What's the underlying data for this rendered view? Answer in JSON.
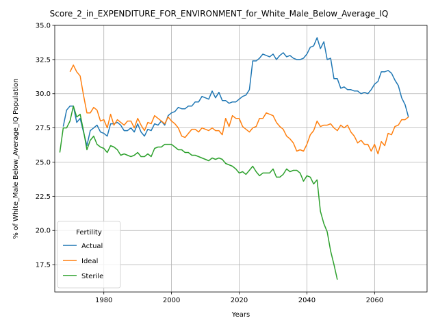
{
  "chart_data": {
    "type": "line",
    "title": "Score_2_in_EXPENDITURE_FOR_ENVIRONMENT_for_White_Male_Below_Average_IQ",
    "xlabel": "Years",
    "ylabel": "% of White_Male Below_Average_IQ Population",
    "xlim": [
      1965.5,
      2075.5
    ],
    "ylim": [
      15.5,
      35.0
    ],
    "xticks": [
      1980,
      2000,
      2020,
      2040,
      2060
    ],
    "xtick_labels": [
      "1980",
      "2000",
      "2020",
      "2040",
      "2060"
    ],
    "yticks": [
      17.5,
      20.0,
      22.5,
      25.0,
      27.5,
      30.0,
      32.5,
      35.0
    ],
    "ytick_labels": [
      "17.5",
      "20.0",
      "22.5",
      "25.0",
      "27.5",
      "30.0",
      "32.5",
      "35.0"
    ],
    "grid": true,
    "legend": {
      "title": "Fertility",
      "placement": "lower-left"
    },
    "series": [
      {
        "name": "Actual",
        "color": "#1f77b4",
        "x": [
          1968,
          1969,
          1970,
          1971,
          1972,
          1973,
          1974,
          1975,
          1976,
          1977,
          1978,
          1979,
          1980,
          1981,
          1982,
          1983,
          1984,
          1985,
          1986,
          1987,
          1988,
          1989,
          1990,
          1991,
          1992,
          1993,
          1994,
          1995,
          1996,
          1997,
          1998,
          1999,
          2000,
          2001,
          2002,
          2003,
          2004,
          2005,
          2006,
          2007,
          2008,
          2009,
          2010,
          2011,
          2012,
          2013,
          2014,
          2015,
          2016,
          2017,
          2018,
          2019,
          2020,
          2021,
          2022,
          2023,
          2024,
          2025,
          2026,
          2027,
          2028,
          2029,
          2030,
          2031,
          2032,
          2033,
          2034,
          2035,
          2036,
          2037,
          2038,
          2039,
          2040,
          2041,
          2042,
          2043,
          2044,
          2045,
          2046,
          2047,
          2048,
          2049,
          2050,
          2051,
          2052,
          2053,
          2054,
          2055,
          2056,
          2057,
          2058,
          2059,
          2060,
          2061,
          2062,
          2063,
          2064,
          2065,
          2066,
          2067,
          2068,
          2069,
          2070
        ],
        "y": [
          27.6,
          28.8,
          29.1,
          29.1,
          27.9,
          28.2,
          27.2,
          26.2,
          27.3,
          27.5,
          27.7,
          27.2,
          27.1,
          26.9,
          27.8,
          27.8,
          27.9,
          27.7,
          27.3,
          27.3,
          27.5,
          27.2,
          27.8,
          27.2,
          26.9,
          27.4,
          27.3,
          27.8,
          27.7,
          28.0,
          27.7,
          28.4,
          28.6,
          28.7,
          29.0,
          28.9,
          28.9,
          29.1,
          29.1,
          29.4,
          29.4,
          29.8,
          29.7,
          29.6,
          30.2,
          29.7,
          30.1,
          29.5,
          29.5,
          29.3,
          29.4,
          29.4,
          29.6,
          29.8,
          29.9,
          30.3,
          32.4,
          32.4,
          32.6,
          32.9,
          32.8,
          32.7,
          32.9,
          32.5,
          32.8,
          33.0,
          32.7,
          32.8,
          32.6,
          32.5,
          32.5,
          32.6,
          32.9,
          33.4,
          33.5,
          34.1,
          33.3,
          33.8,
          32.5,
          32.6,
          31.1,
          31.1,
          30.4,
          30.5,
          30.3,
          30.3,
          30.2,
          30.2,
          30.0,
          30.1,
          30.0,
          30.3,
          30.7,
          30.9,
          31.6,
          31.6,
          31.7,
          31.5,
          31.0,
          30.6,
          29.7,
          29.2,
          28.3
        ]
      },
      {
        "name": "Ideal",
        "color": "#ff7f0e",
        "x": [
          1970,
          1971,
          1972,
          1973,
          1974,
          1975,
          1976,
          1977,
          1978,
          1979,
          1980,
          1981,
          1982,
          1983,
          1984,
          1985,
          1986,
          1987,
          1988,
          1989,
          1990,
          1991,
          1992,
          1993,
          1994,
          1995,
          1996,
          1997,
          1998,
          1999,
          2000,
          2001,
          2002,
          2003,
          2004,
          2005,
          2006,
          2007,
          2008,
          2009,
          2010,
          2011,
          2012,
          2013,
          2014,
          2015,
          2016,
          2017,
          2018,
          2019,
          2020,
          2021,
          2022,
          2023,
          2024,
          2025,
          2026,
          2027,
          2028,
          2029,
          2030,
          2031,
          2032,
          2033,
          2034,
          2035,
          2036,
          2037,
          2038,
          2039,
          2040,
          2041,
          2042,
          2043,
          2044,
          2045,
          2046,
          2047,
          2048,
          2049,
          2050,
          2051,
          2052,
          2053,
          2054,
          2055,
          2056,
          2057,
          2058,
          2059,
          2060,
          2061,
          2062,
          2063,
          2064,
          2065,
          2066,
          2067,
          2068,
          2069,
          2070
        ],
        "y": [
          31.6,
          32.1,
          31.6,
          31.3,
          29.9,
          28.6,
          28.6,
          29.0,
          28.8,
          28.0,
          28.1,
          27.5,
          28.5,
          27.7,
          28.1,
          27.9,
          27.7,
          28.0,
          28.0,
          27.5,
          28.2,
          27.7,
          27.3,
          27.9,
          27.8,
          28.4,
          28.2,
          28.0,
          27.8,
          28.3,
          28.0,
          27.8,
          27.5,
          26.9,
          26.8,
          27.1,
          27.4,
          27.4,
          27.2,
          27.5,
          27.4,
          27.3,
          27.5,
          27.3,
          27.3,
          27.0,
          28.2,
          27.6,
          28.4,
          28.2,
          28.2,
          27.6,
          27.4,
          27.2,
          27.5,
          27.6,
          28.2,
          28.2,
          28.6,
          28.5,
          28.4,
          27.9,
          27.6,
          27.4,
          26.9,
          26.7,
          26.4,
          25.8,
          25.9,
          25.8,
          26.3,
          27.0,
          27.3,
          28.0,
          27.6,
          27.7,
          27.7,
          27.8,
          27.5,
          27.3,
          27.7,
          27.5,
          27.7,
          27.2,
          26.9,
          26.4,
          26.6,
          26.3,
          26.3,
          25.8,
          26.3,
          25.6,
          26.5,
          26.2,
          27.1,
          27.0,
          27.6,
          27.7,
          28.1,
          28.1,
          28.3
        ]
      },
      {
        "name": "Sterile",
        "color": "#2ca02c",
        "x": [
          1967,
          1968,
          1969,
          1970,
          1971,
          1972,
          1973,
          1974,
          1975,
          1976,
          1977,
          1978,
          1979,
          1980,
          1981,
          1982,
          1983,
          1984,
          1985,
          1986,
          1987,
          1988,
          1989,
          1990,
          1991,
          1992,
          1993,
          1994,
          1995,
          1996,
          1997,
          1998,
          1999,
          2000,
          2001,
          2002,
          2003,
          2004,
          2005,
          2006,
          2007,
          2008,
          2009,
          2010,
          2011,
          2012,
          2013,
          2014,
          2015,
          2016,
          2017,
          2018,
          2019,
          2020,
          2021,
          2022,
          2023,
          2024,
          2025,
          2026,
          2027,
          2028,
          2029,
          2030,
          2031,
          2032,
          2033,
          2034,
          2035,
          2036,
          2037,
          2038,
          2039,
          2040,
          2041,
          2042,
          2043,
          2044,
          2045,
          2046,
          2047,
          2048,
          2049
        ],
        "y": [
          25.7,
          27.5,
          27.5,
          28.0,
          29.1,
          28.3,
          28.5,
          27.3,
          25.9,
          26.6,
          26.9,
          26.3,
          26.1,
          26.0,
          25.7,
          26.2,
          26.1,
          25.9,
          25.5,
          25.6,
          25.5,
          25.4,
          25.5,
          25.7,
          25.4,
          25.4,
          25.6,
          25.4,
          26.0,
          26.1,
          26.1,
          26.3,
          26.3,
          26.3,
          26.1,
          25.9,
          25.9,
          25.7,
          25.7,
          25.5,
          25.5,
          25.4,
          25.3,
          25.2,
          25.1,
          25.3,
          25.2,
          25.3,
          25.2,
          24.9,
          24.8,
          24.7,
          24.5,
          24.2,
          24.3,
          24.1,
          24.4,
          24.7,
          24.3,
          24.0,
          24.2,
          24.2,
          24.2,
          24.5,
          23.9,
          23.9,
          24.1,
          24.5,
          24.3,
          24.4,
          24.4,
          24.2,
          23.6,
          24.0,
          23.9,
          23.4,
          23.7,
          21.4,
          20.5,
          19.9,
          18.5,
          17.5,
          16.4
        ]
      }
    ]
  }
}
